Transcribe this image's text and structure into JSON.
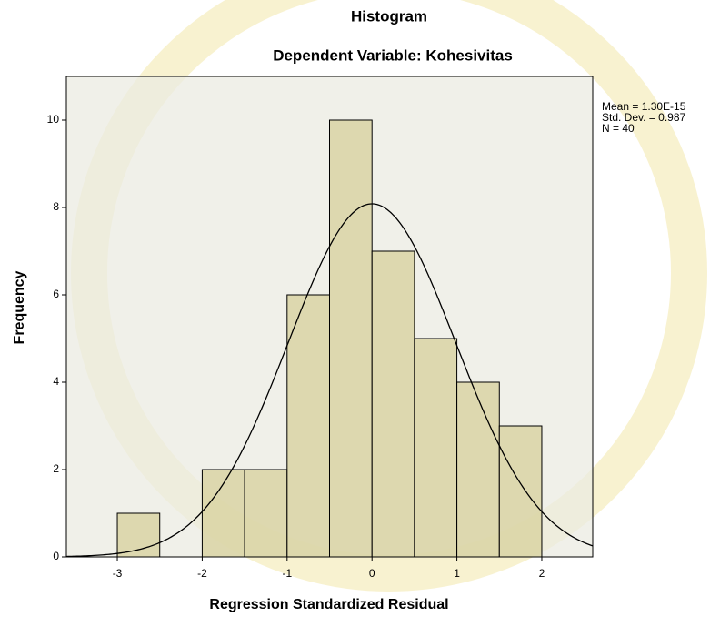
{
  "chart_data": {
    "type": "histogram",
    "title": "Histogram",
    "subtitle": "Dependent Variable: Kohesivitas",
    "x_label": "Regression Standardized Residual",
    "y_label": "Frequency",
    "bins": [
      -3,
      -2.5,
      -2,
      -1.5,
      -1,
      -0.5,
      0,
      0.5,
      1,
      1.5,
      2
    ],
    "values": [
      1,
      0,
      2,
      2,
      6,
      10,
      7,
      5,
      4,
      3
    ],
    "color": "#d8d2a0",
    "xlim": [
      -3.6,
      2.6
    ],
    "ylim": [
      0,
      11
    ],
    "xticks": [
      -3,
      -2,
      -1,
      0,
      1,
      2
    ],
    "yticks": [
      0,
      2,
      4,
      6,
      8,
      10
    ],
    "stats": [
      {
        "value": 1.3e-15,
        "label": "Mean = 1.30E-15"
      },
      {
        "value": 0.987,
        "label": "Std. Dev. = 0.987"
      },
      {
        "value": 40,
        "label": "N = 40"
      }
    ],
    "normal_curve": true
  }
}
